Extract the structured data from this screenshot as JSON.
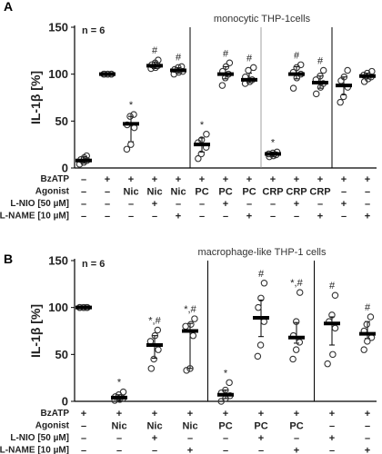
{
  "chart_data": [
    {
      "panel": "A",
      "type": "scatter",
      "title": "monocytic THP-1cells",
      "n_label": "n = 6",
      "ylabel": "IL-1β [%]",
      "ylim": [
        0,
        150
      ],
      "yticks": [
        "0",
        "50",
        "100",
        "150"
      ],
      "row_labels": [
        "BzATP",
        "Agonist",
        "L-NIO [50 µM]",
        "L-NAME [10 µM]"
      ],
      "groups": [
        {
          "rows": [
            "–",
            "–",
            "–",
            "–"
          ],
          "mean": 8,
          "err": [
            5,
            12
          ],
          "points": [
            4,
            6,
            8,
            9,
            11,
            13
          ],
          "mark": ""
        },
        {
          "rows": [
            "+",
            "–",
            "–",
            "–"
          ],
          "mean": 100,
          "err": [
            99,
            101
          ],
          "points": [
            100,
            100,
            100,
            100,
            100,
            100
          ],
          "mark": ""
        },
        {
          "rows": [
            "+",
            "Nic",
            "–",
            "–"
          ],
          "mean": 47,
          "err": [
            28,
            55
          ],
          "points": [
            20,
            25,
            43,
            46,
            55,
            57
          ],
          "mark": "*"
        },
        {
          "rows": [
            "+",
            "Nic",
            "+",
            "–"
          ],
          "mean": 109,
          "err": [
            106,
            113
          ],
          "points": [
            106,
            107,
            109,
            110,
            112,
            115
          ],
          "mark": "#"
        },
        {
          "rows": [
            "+",
            "Nic",
            "–",
            "+"
          ],
          "mean": 104,
          "err": [
            101,
            107
          ],
          "points": [
            100,
            102,
            103,
            105,
            107,
            108
          ],
          "mark": "#"
        },
        {
          "rows": [
            "+",
            "PC",
            "–",
            "–"
          ],
          "mean": 25,
          "err": [
            17,
            32
          ],
          "points": [
            10,
            15,
            22,
            27,
            30,
            36
          ],
          "mark": "*"
        },
        {
          "rows": [
            "+",
            "PC",
            "+",
            "–"
          ],
          "mean": 100,
          "err": [
            95,
            108
          ],
          "points": [
            88,
            96,
            100,
            103,
            108,
            112
          ],
          "mark": "#"
        },
        {
          "rows": [
            "+",
            "PC",
            "–",
            "+"
          ],
          "mean": 94,
          "err": [
            91,
            101
          ],
          "points": [
            90,
            92,
            94,
            97,
            104,
            107
          ],
          "mark": "#"
        },
        {
          "rows": [
            "+",
            "CRP",
            "–",
            "–"
          ],
          "mean": 15,
          "err": [
            12,
            17
          ],
          "points": [
            12,
            13,
            14,
            15,
            16,
            17
          ],
          "mark": "*"
        },
        {
          "rows": [
            "+",
            "CRP",
            "+",
            "–"
          ],
          "mean": 100,
          "err": [
            95,
            108
          ],
          "points": [
            85,
            96,
            100,
            102,
            107,
            110
          ],
          "mark": "#"
        },
        {
          "rows": [
            "+",
            "CRP",
            "–",
            "+"
          ],
          "mean": 91,
          "err": [
            85,
            98
          ],
          "points": [
            79,
            86,
            90,
            94,
            98,
            104
          ],
          "mark": "#"
        },
        {
          "rows": [
            "+",
            "–",
            "+",
            "–"
          ],
          "mean": 88,
          "err": [
            78,
            97
          ],
          "points": [
            70,
            76,
            86,
            93,
            97,
            104
          ],
          "mark": ""
        },
        {
          "rows": [
            "+",
            "–",
            "–",
            "+"
          ],
          "mean": 98,
          "err": [
            95,
            101
          ],
          "points": [
            92,
            95,
            97,
            99,
            101,
            103
          ],
          "mark": ""
        }
      ],
      "separators_after": [
        4,
        7,
        10
      ]
    },
    {
      "panel": "B",
      "type": "scatter",
      "title": "macrophage-like THP-1 cells",
      "n_label": "n = 6",
      "ylabel": "IL-1β [%]",
      "ylim": [
        0,
        150
      ],
      "yticks": [
        "0",
        "50",
        "100",
        "150"
      ],
      "row_labels": [
        "BzATP",
        "Agonist",
        "L-NIO [50 µM]",
        "L-NAME [10 µM]"
      ],
      "groups": [
        {
          "rows": [
            "+",
            "–",
            "–",
            "–"
          ],
          "mean": 100,
          "err": [
            99,
            101
          ],
          "points": [
            100,
            100,
            100,
            100,
            100,
            100
          ],
          "mark": ""
        },
        {
          "rows": [
            "+",
            "Nic",
            "–",
            "–"
          ],
          "mean": 4,
          "err": [
            1,
            7
          ],
          "points": [
            1,
            2,
            3,
            5,
            7,
            10
          ],
          "mark": "*"
        },
        {
          "rows": [
            "+",
            "Nic",
            "+",
            "–"
          ],
          "mean": 60,
          "err": [
            46,
            70
          ],
          "points": [
            35,
            45,
            55,
            64,
            70,
            76
          ],
          "mark": "*,#"
        },
        {
          "rows": [
            "+",
            "Nic",
            "–",
            "+"
          ],
          "mean": 75,
          "err": [
            35,
            83
          ],
          "points": [
            33,
            35,
            70,
            80,
            82,
            88
          ],
          "mark": "*,#"
        },
        {
          "rows": [
            "+",
            "PC",
            "–",
            "–"
          ],
          "mean": 7,
          "err": [
            3,
            12
          ],
          "points": [
            0,
            3,
            6,
            9,
            12,
            20
          ],
          "mark": "*"
        },
        {
          "rows": [
            "+",
            "PC",
            "+",
            "–"
          ],
          "mean": 89,
          "err": [
            69,
            108
          ],
          "points": [
            48,
            60,
            85,
            100,
            110,
            126
          ],
          "mark": "#"
        },
        {
          "rows": [
            "+",
            "PC",
            "–",
            "+"
          ],
          "mean": 68,
          "err": [
            62,
            84
          ],
          "points": [
            45,
            55,
            63,
            70,
            85,
            116
          ],
          "mark": "*,#"
        },
        {
          "rows": [
            "+",
            "–",
            "+",
            "–"
          ],
          "mean": 83,
          "err": [
            60,
            90
          ],
          "points": [
            40,
            50,
            78,
            85,
            92,
            113
          ],
          "mark": "#"
        },
        {
          "rows": [
            "+",
            "–",
            "–",
            "+"
          ],
          "mean": 72,
          "err": [
            67,
            85
          ],
          "points": [
            55,
            64,
            68,
            75,
            82,
            90
          ],
          "mark": "#"
        }
      ],
      "separators_after": [
        3,
        6
      ]
    }
  ]
}
